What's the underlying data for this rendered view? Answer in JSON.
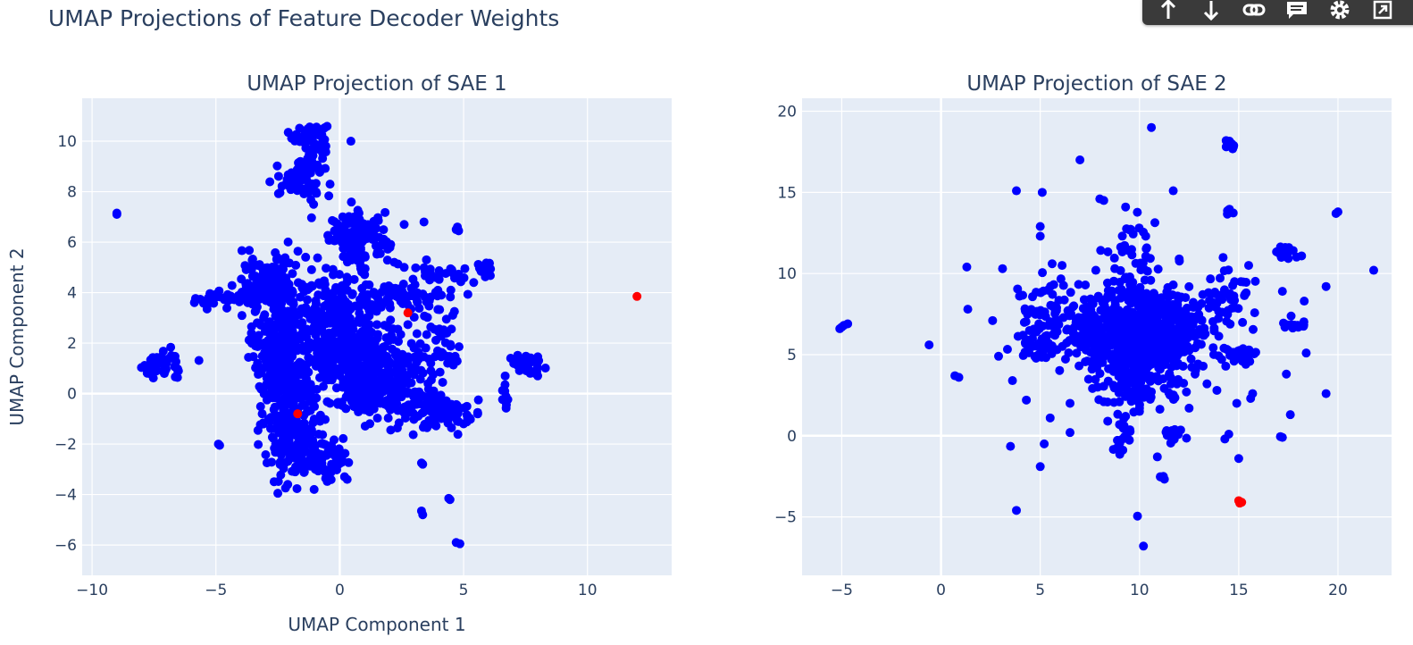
{
  "title": "UMAP Projections of Feature Decoder Weights",
  "modebar": {
    "buttons": [
      "pan-arrow-up-icon",
      "pan-arrow-down-icon",
      "link-icon",
      "comment-icon",
      "gear-icon",
      "export-icon"
    ]
  },
  "colors": {
    "points": "#0000ff",
    "highlight": "#ff0000",
    "plot_bg": "#e5ecf6",
    "grid": "#ffffff",
    "text": "#2a3f5f"
  },
  "chart_data": [
    {
      "type": "scatter",
      "title": "UMAP Projection of SAE 1",
      "xlabel": "UMAP Component 1",
      "ylabel": "UMAP Component 2",
      "xlim": [
        -10.4,
        13.4
      ],
      "ylim": [
        -7.2,
        11.7
      ],
      "xticks": [
        -10,
        -5,
        0,
        5,
        10
      ],
      "yticks": [
        -6,
        -4,
        -2,
        0,
        2,
        4,
        6,
        8,
        10
      ],
      "grid": true,
      "clusters": [
        {
          "cx": -1.2,
          "cy": 10.2,
          "sx": 0.35,
          "sy": 0.25,
          "n": 70
        },
        {
          "cx": -1.3,
          "cy": 8.8,
          "sx": 0.35,
          "sy": 0.6,
          "n": 60
        },
        {
          "cx": -2.0,
          "cy": 8.3,
          "sx": 0.4,
          "sy": 0.2,
          "n": 25
        },
        {
          "cx": 0.8,
          "cy": 6.1,
          "sx": 0.6,
          "sy": 0.5,
          "n": 130
        },
        {
          "cx": -2.8,
          "cy": 4.3,
          "sx": 0.6,
          "sy": 0.5,
          "n": 140
        },
        {
          "cx": -4.5,
          "cy": 3.8,
          "sx": 0.8,
          "sy": 0.2,
          "n": 45
        },
        {
          "cx": -2.5,
          "cy": 1.5,
          "sx": 0.5,
          "sy": 1.2,
          "n": 260
        },
        {
          "cx": -0.5,
          "cy": 2.5,
          "sx": 1.0,
          "sy": 1.2,
          "n": 300
        },
        {
          "cx": 0.8,
          "cy": 1.5,
          "sx": 0.9,
          "sy": 0.9,
          "n": 220
        },
        {
          "cx": -1.8,
          "cy": -1.5,
          "sx": 0.6,
          "sy": 0.9,
          "n": 170
        },
        {
          "cx": -0.8,
          "cy": -2.5,
          "sx": 0.6,
          "sy": 0.4,
          "n": 70
        },
        {
          "cx": 2.5,
          "cy": 3.8,
          "sx": 0.8,
          "sy": 0.25,
          "n": 60
        },
        {
          "cx": 2.5,
          "cy": 0.5,
          "sx": 0.8,
          "sy": 0.7,
          "n": 120
        },
        {
          "cx": 3.8,
          "cy": -0.6,
          "sx": 0.7,
          "sy": 0.35,
          "n": 90
        },
        {
          "cx": 3.8,
          "cy": 2.4,
          "sx": 0.5,
          "sy": 0.6,
          "n": 40
        },
        {
          "cx": 4.0,
          "cy": 4.6,
          "sx": 0.7,
          "sy": 0.3,
          "n": 30
        },
        {
          "cx": 1.0,
          "cy": -0.3,
          "sx": 0.8,
          "sy": 0.3,
          "n": 60
        },
        {
          "cx": -7.2,
          "cy": 1.1,
          "sx": 0.4,
          "sy": 0.3,
          "n": 40
        },
        {
          "cx": 7.6,
          "cy": 1.1,
          "sx": 0.4,
          "sy": 0.2,
          "n": 30
        },
        {
          "cx": 5.9,
          "cy": 4.8,
          "sx": 0.2,
          "sy": 0.25,
          "n": 10
        },
        {
          "cx": 6.7,
          "cy": 0.0,
          "sx": 0.1,
          "sy": 0.3,
          "n": 10
        },
        {
          "cx": 4.5,
          "cy": 1.5,
          "sx": 0.2,
          "sy": 0.15,
          "n": 8
        },
        {
          "cx": 4.7,
          "cy": -0.8,
          "sx": 0.35,
          "sy": 0.3,
          "n": 20
        }
      ],
      "points": [
        [
          -9.0,
          7.15
        ],
        [
          -9.0,
          7.1
        ],
        [
          -4.9,
          -2.0
        ],
        [
          -4.85,
          -2.05
        ],
        [
          0.45,
          10.0
        ],
        [
          4.75,
          6.6
        ],
        [
          4.7,
          6.5
        ],
        [
          4.8,
          6.45
        ],
        [
          3.3,
          -2.75
        ],
        [
          3.35,
          -2.8
        ],
        [
          3.3,
          -4.65
        ],
        [
          3.35,
          -4.8
        ],
        [
          4.4,
          -4.15
        ],
        [
          4.45,
          -4.2
        ],
        [
          4.7,
          -5.9
        ],
        [
          4.85,
          -5.95
        ],
        [
          -2.5,
          -3.95
        ],
        [
          -2.1,
          -3.6
        ],
        [
          -1.8,
          -3.1
        ],
        [
          0.3,
          -3.4
        ],
        [
          4.75,
          -1.1
        ],
        [
          5.0,
          -1.2
        ],
        [
          3.5,
          5.3
        ],
        [
          2.6,
          6.7
        ],
        [
          3.4,
          6.8
        ],
        [
          5.05,
          4.95
        ],
        [
          7.1,
          1.35
        ],
        [
          6.9,
          1.4
        ],
        [
          2.6,
          5.0
        ],
        [
          2.2,
          5.2
        ],
        [
          0.8,
          6.9
        ]
      ],
      "highlight": [
        [
          12.0,
          3.85
        ],
        [
          2.75,
          3.2
        ],
        [
          -1.7,
          -0.8
        ]
      ]
    },
    {
      "type": "scatter",
      "title": "UMAP Projection of SAE 2",
      "xlabel": "",
      "ylabel": "",
      "xlim": [
        -7.0,
        22.7
      ],
      "ylim": [
        -8.6,
        20.8
      ],
      "xticks": [
        -5,
        0,
        5,
        10,
        15,
        20
      ],
      "yticks": [
        -5,
        0,
        5,
        10,
        15,
        20
      ],
      "grid": true,
      "clusters": [
        {
          "cx": 10.0,
          "cy": 6.0,
          "sx": 1.4,
          "sy": 1.3,
          "n": 520
        },
        {
          "cx": 8.0,
          "cy": 6.5,
          "sx": 1.6,
          "sy": 1.0,
          "n": 130
        },
        {
          "cx": 12.0,
          "cy": 7.0,
          "sx": 0.9,
          "sy": 1.1,
          "n": 110
        },
        {
          "cx": 9.6,
          "cy": 10.5,
          "sx": 0.7,
          "sy": 1.6,
          "n": 60
        },
        {
          "cx": 5.5,
          "cy": 7.8,
          "sx": 1.2,
          "sy": 1.0,
          "n": 60
        },
        {
          "cx": 5.0,
          "cy": 5.5,
          "sx": 0.8,
          "sy": 0.4,
          "n": 35
        },
        {
          "cx": 14.5,
          "cy": 8.5,
          "sx": 0.6,
          "sy": 1.0,
          "n": 45
        },
        {
          "cx": 15.0,
          "cy": 5.1,
          "sx": 0.4,
          "sy": 0.3,
          "n": 30
        },
        {
          "cx": 10.0,
          "cy": 3.0,
          "sx": 1.3,
          "sy": 0.7,
          "n": 70
        },
        {
          "cx": 9.2,
          "cy": 0.0,
          "sx": 0.2,
          "sy": 0.6,
          "n": 20
        },
        {
          "cx": 17.4,
          "cy": 11.3,
          "sx": 0.3,
          "sy": 0.2,
          "n": 20
        },
        {
          "cx": 14.5,
          "cy": 17.9,
          "sx": 0.2,
          "sy": 0.15,
          "n": 10
        },
        {
          "cx": 14.6,
          "cy": 13.8,
          "sx": 0.1,
          "sy": 0.1,
          "n": 6
        },
        {
          "cx": 17.7,
          "cy": 6.9,
          "sx": 0.4,
          "sy": 0.2,
          "n": 12
        },
        {
          "cx": 11.6,
          "cy": 0.2,
          "sx": 0.3,
          "sy": 0.2,
          "n": 12
        },
        {
          "cx": 11.2,
          "cy": -2.6,
          "sx": 0.15,
          "sy": 0.15,
          "n": 6
        }
      ],
      "points": [
        [
          -5.0,
          6.7
        ],
        [
          -4.9,
          6.8
        ],
        [
          -5.1,
          6.6
        ],
        [
          -4.7,
          6.9
        ],
        [
          -0.6,
          5.6
        ],
        [
          0.7,
          3.7
        ],
        [
          0.9,
          3.6
        ],
        [
          1.3,
          10.4
        ],
        [
          1.35,
          7.8
        ],
        [
          2.6,
          7.1
        ],
        [
          2.9,
          4.9
        ],
        [
          3.1,
          10.3
        ],
        [
          3.5,
          -0.65
        ],
        [
          3.8,
          -4.6
        ],
        [
          5.0,
          -1.9
        ],
        [
          5.2,
          -0.5
        ],
        [
          5.1,
          15.0
        ],
        [
          3.8,
          15.1
        ],
        [
          7.0,
          17.0
        ],
        [
          8.0,
          14.6
        ],
        [
          8.2,
          14.5
        ],
        [
          9.3,
          14.1
        ],
        [
          10.6,
          19.0
        ],
        [
          11.7,
          15.1
        ],
        [
          19.9,
          13.7
        ],
        [
          20.0,
          13.8
        ],
        [
          21.8,
          10.2
        ],
        [
          19.4,
          9.2
        ],
        [
          18.3,
          8.3
        ],
        [
          17.2,
          8.9
        ],
        [
          18.4,
          5.1
        ],
        [
          19.4,
          2.6
        ],
        [
          17.1,
          -0.05
        ],
        [
          17.2,
          -0.1
        ],
        [
          17.6,
          1.3
        ],
        [
          17.4,
          3.8
        ],
        [
          15.7,
          2.6
        ],
        [
          15.6,
          2.3
        ],
        [
          15.0,
          -1.4
        ],
        [
          14.3,
          -0.2
        ],
        [
          14.5,
          0.1
        ],
        [
          14.9,
          2.0
        ],
        [
          13.9,
          2.8
        ],
        [
          10.2,
          -6.8
        ],
        [
          9.9,
          -4.95
        ],
        [
          10.9,
          -1.3
        ],
        [
          10.0,
          1.5
        ],
        [
          10.0,
          1.7
        ],
        [
          9.3,
          1.2
        ],
        [
          5.5,
          1.1
        ],
        [
          6.5,
          2.0
        ],
        [
          4.3,
          2.2
        ],
        [
          3.6,
          3.4
        ],
        [
          12.5,
          1.7
        ],
        [
          12.8,
          3.8
        ],
        [
          13.4,
          3.2
        ],
        [
          15.5,
          10.5
        ],
        [
          12.0,
          10.9
        ],
        [
          11.7,
          9.3
        ],
        [
          5.0,
          12.9
        ],
        [
          5.0,
          12.3
        ],
        [
          5.6,
          10.6
        ],
        [
          6.1,
          10.5
        ],
        [
          4.5,
          5.8
        ],
        [
          6.5,
          0.2
        ],
        [
          7.8,
          10.2
        ],
        [
          8.7,
          4.5
        ],
        [
          8.2,
          2.1
        ],
        [
          8.4,
          0.9
        ]
      ],
      "highlight": [
        [
          15.0,
          -4.0
        ],
        [
          15.15,
          -4.1
        ],
        [
          15.05,
          -4.15
        ]
      ]
    }
  ]
}
